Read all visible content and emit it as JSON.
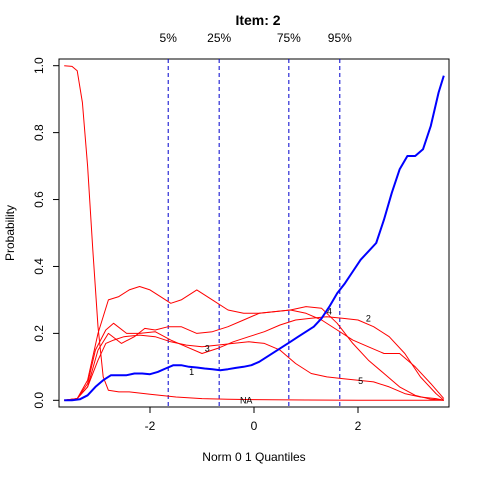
{
  "chart_data": {
    "type": "line",
    "title": "Item:  2",
    "xlabel": "Norm 0 1 Quantiles",
    "ylabel": "Probability",
    "xlim": [
      -3.75,
      3.75
    ],
    "ylim": [
      -0.02,
      1.02
    ],
    "x_ticks": [
      -2,
      0,
      2
    ],
    "x_tick_labels": [
      "-2",
      "0",
      "2"
    ],
    "y_ticks": [
      0.0,
      0.2,
      0.4,
      0.6,
      0.8,
      1.0
    ],
    "y_tick_labels": [
      "0.0",
      "0.2",
      "0.4",
      "0.6",
      "0.8",
      "1.0"
    ],
    "grid": false,
    "percentile_lines": [
      {
        "label": "5%",
        "x": -1.65
      },
      {
        "label": "25%",
        "x": -0.67
      },
      {
        "label": "75%",
        "x": 0.67
      },
      {
        "label": "95%",
        "x": 1.65
      }
    ],
    "colors": {
      "options": "#ff0000",
      "key": "#0000ff",
      "percentile": "#0000cc"
    },
    "series": [
      {
        "label": "2",
        "key": true,
        "x": [
          -3.65,
          -3.5,
          -3.35,
          -3.2,
          -3.05,
          -2.9,
          -2.75,
          -2.6,
          -2.45,
          -2.3,
          -2.15,
          -2.0,
          -1.85,
          -1.7,
          -1.55,
          -1.4,
          -1.25,
          -1.1,
          -0.95,
          -0.8,
          -0.65,
          -0.5,
          -0.35,
          -0.2,
          -0.05,
          0.1,
          0.25,
          0.4,
          0.55,
          0.7,
          0.85,
          1.0,
          1.15,
          1.3,
          1.45,
          1.6,
          1.75,
          1.9,
          2.05,
          2.2,
          2.35,
          2.5,
          2.65,
          2.8,
          2.95,
          3.1,
          3.25,
          3.4,
          3.55,
          3.65
        ],
        "y": [
          0.0,
          0.0,
          0.003,
          0.015,
          0.04,
          0.06,
          0.075,
          0.075,
          0.075,
          0.08,
          0.08,
          0.078,
          0.085,
          0.095,
          0.105,
          0.105,
          0.1,
          0.098,
          0.095,
          0.093,
          0.09,
          0.093,
          0.097,
          0.1,
          0.105,
          0.115,
          0.13,
          0.145,
          0.16,
          0.175,
          0.19,
          0.205,
          0.22,
          0.245,
          0.28,
          0.32,
          0.35,
          0.385,
          0.42,
          0.445,
          0.47,
          0.54,
          0.62,
          0.69,
          0.73,
          0.73,
          0.75,
          0.82,
          0.92,
          0.97
        ]
      },
      {
        "label": "NA",
        "key": false,
        "x": [
          -3.65,
          -3.5,
          -3.4,
          -3.3,
          -3.2,
          -3.1,
          -3.0,
          -2.9,
          -2.8,
          -2.6,
          -2.4,
          -2.0,
          -1.5,
          -1.0,
          -0.5,
          0.0,
          1.0,
          2.0,
          3.0,
          3.65
        ],
        "y": [
          1.0,
          0.998,
          0.985,
          0.89,
          0.7,
          0.45,
          0.22,
          0.07,
          0.03,
          0.025,
          0.025,
          0.018,
          0.01,
          0.005,
          0.003,
          0.002,
          0.001,
          0.0,
          0.0,
          0.0
        ]
      },
      {
        "label": "1",
        "key": false,
        "x": [
          -3.65,
          -3.4,
          -3.2,
          -3.0,
          -2.85,
          -2.7,
          -2.5,
          -2.2,
          -1.9,
          -1.6,
          -1.3,
          -1.0,
          -0.7,
          -0.4,
          -0.1,
          0.2,
          0.5,
          0.8,
          1.1,
          1.4,
          1.7,
          2.0,
          2.3,
          2.6,
          2.9,
          3.2,
          3.5,
          3.65
        ],
        "y": [
          0.0,
          0.005,
          0.04,
          0.12,
          0.17,
          0.18,
          0.19,
          0.195,
          0.19,
          0.175,
          0.165,
          0.16,
          0.165,
          0.17,
          0.175,
          0.17,
          0.15,
          0.11,
          0.08,
          0.07,
          0.065,
          0.06,
          0.055,
          0.04,
          0.02,
          0.01,
          0.005,
          0.0
        ]
      },
      {
        "label": "3",
        "key": false,
        "x": [
          -3.65,
          -3.4,
          -3.2,
          -3.05,
          -2.85,
          -2.7,
          -2.45,
          -2.2,
          -1.9,
          -1.6,
          -1.3,
          -1.0,
          -0.7,
          -0.4,
          -0.1,
          0.2,
          0.5,
          0.8,
          1.1,
          1.4,
          1.7,
          2.0,
          2.3,
          2.6,
          2.9,
          3.2,
          3.5,
          3.65
        ],
        "y": [
          0.0,
          0.005,
          0.05,
          0.15,
          0.21,
          0.23,
          0.2,
          0.2,
          0.205,
          0.18,
          0.16,
          0.14,
          0.155,
          0.175,
          0.19,
          0.205,
          0.225,
          0.24,
          0.245,
          0.25,
          0.245,
          0.24,
          0.22,
          0.19,
          0.14,
          0.07,
          0.02,
          0.0
        ]
      },
      {
        "label": "4",
        "key": false,
        "x": [
          -3.65,
          -3.4,
          -3.2,
          -3.0,
          -2.8,
          -2.6,
          -2.4,
          -2.2,
          -2.0,
          -1.8,
          -1.6,
          -1.4,
          -1.1,
          -0.8,
          -0.5,
          -0.2,
          0.1,
          0.4,
          0.7,
          1.0,
          1.3,
          1.6,
          1.9,
          2.2,
          2.5,
          2.8,
          3.1,
          3.4,
          3.65
        ],
        "y": [
          0.0,
          0.005,
          0.06,
          0.2,
          0.3,
          0.31,
          0.33,
          0.34,
          0.33,
          0.31,
          0.29,
          0.3,
          0.33,
          0.3,
          0.27,
          0.26,
          0.26,
          0.265,
          0.27,
          0.26,
          0.24,
          0.21,
          0.18,
          0.16,
          0.14,
          0.14,
          0.1,
          0.05,
          0.005
        ]
      },
      {
        "label": "5",
        "key": false,
        "x": [
          -3.65,
          -3.4,
          -3.2,
          -3.0,
          -2.8,
          -2.55,
          -2.3,
          -2.1,
          -1.9,
          -1.65,
          -1.4,
          -1.1,
          -0.8,
          -0.5,
          -0.2,
          0.1,
          0.4,
          0.7,
          1.0,
          1.3,
          1.6,
          1.9,
          2.2,
          2.5,
          2.8,
          3.1,
          3.4,
          3.65
        ],
        "y": [
          0.0,
          0.005,
          0.04,
          0.15,
          0.2,
          0.17,
          0.19,
          0.215,
          0.21,
          0.22,
          0.22,
          0.2,
          0.205,
          0.22,
          0.24,
          0.26,
          0.265,
          0.27,
          0.28,
          0.275,
          0.23,
          0.17,
          0.12,
          0.08,
          0.04,
          0.015,
          0.003,
          0.0
        ]
      }
    ],
    "curve_labels": [
      {
        "text": "NA",
        "x": -0.15,
        "y": 0.0
      },
      {
        "text": "1",
        "x": -1.2,
        "y": 0.085
      },
      {
        "text": "3",
        "x": -0.9,
        "y": 0.155
      },
      {
        "text": "4",
        "x": 1.45,
        "y": 0.265
      },
      {
        "text": "2",
        "x": 2.2,
        "y": 0.245
      },
      {
        "text": "5",
        "x": 2.05,
        "y": 0.058
      }
    ]
  }
}
